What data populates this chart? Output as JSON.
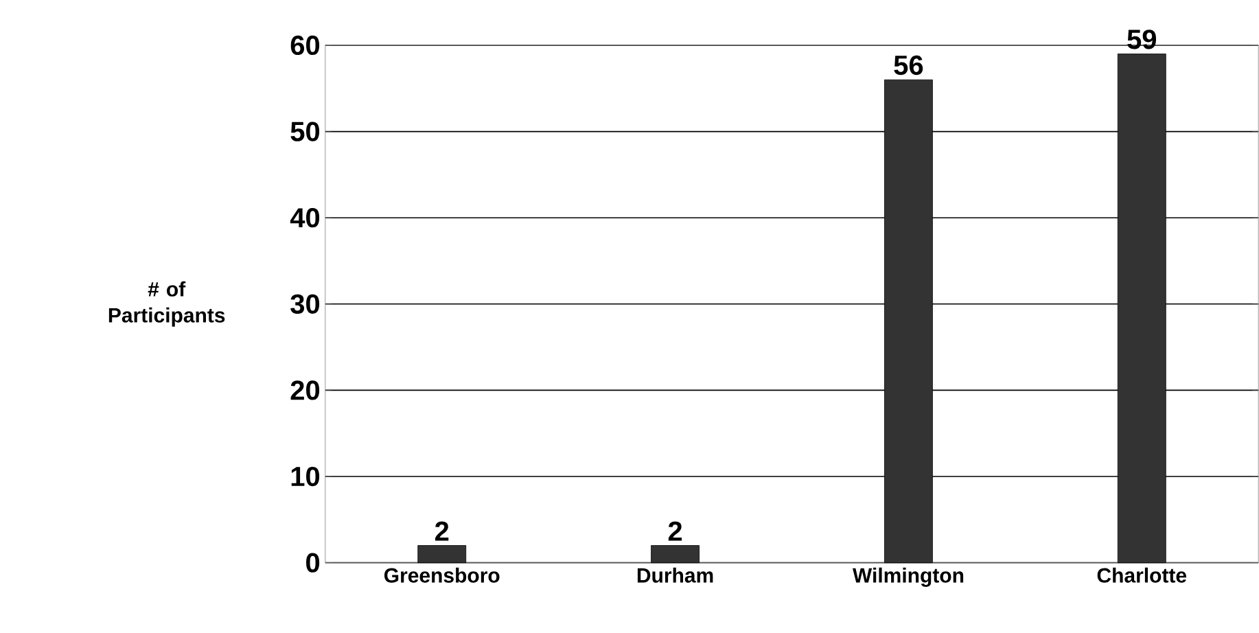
{
  "chart_data": {
    "type": "bar",
    "ylabel": "# of Participants",
    "categories": [
      "Greensboro",
      "Durham",
      "Wilmington",
      "Charlotte"
    ],
    "values": [
      2,
      2,
      56,
      59
    ],
    "color": "#333333",
    "ylim": [
      0,
      60
    ],
    "yticks": [
      0,
      10,
      20,
      30,
      40,
      50,
      60
    ],
    "grid": "y",
    "data_labels": true
  }
}
